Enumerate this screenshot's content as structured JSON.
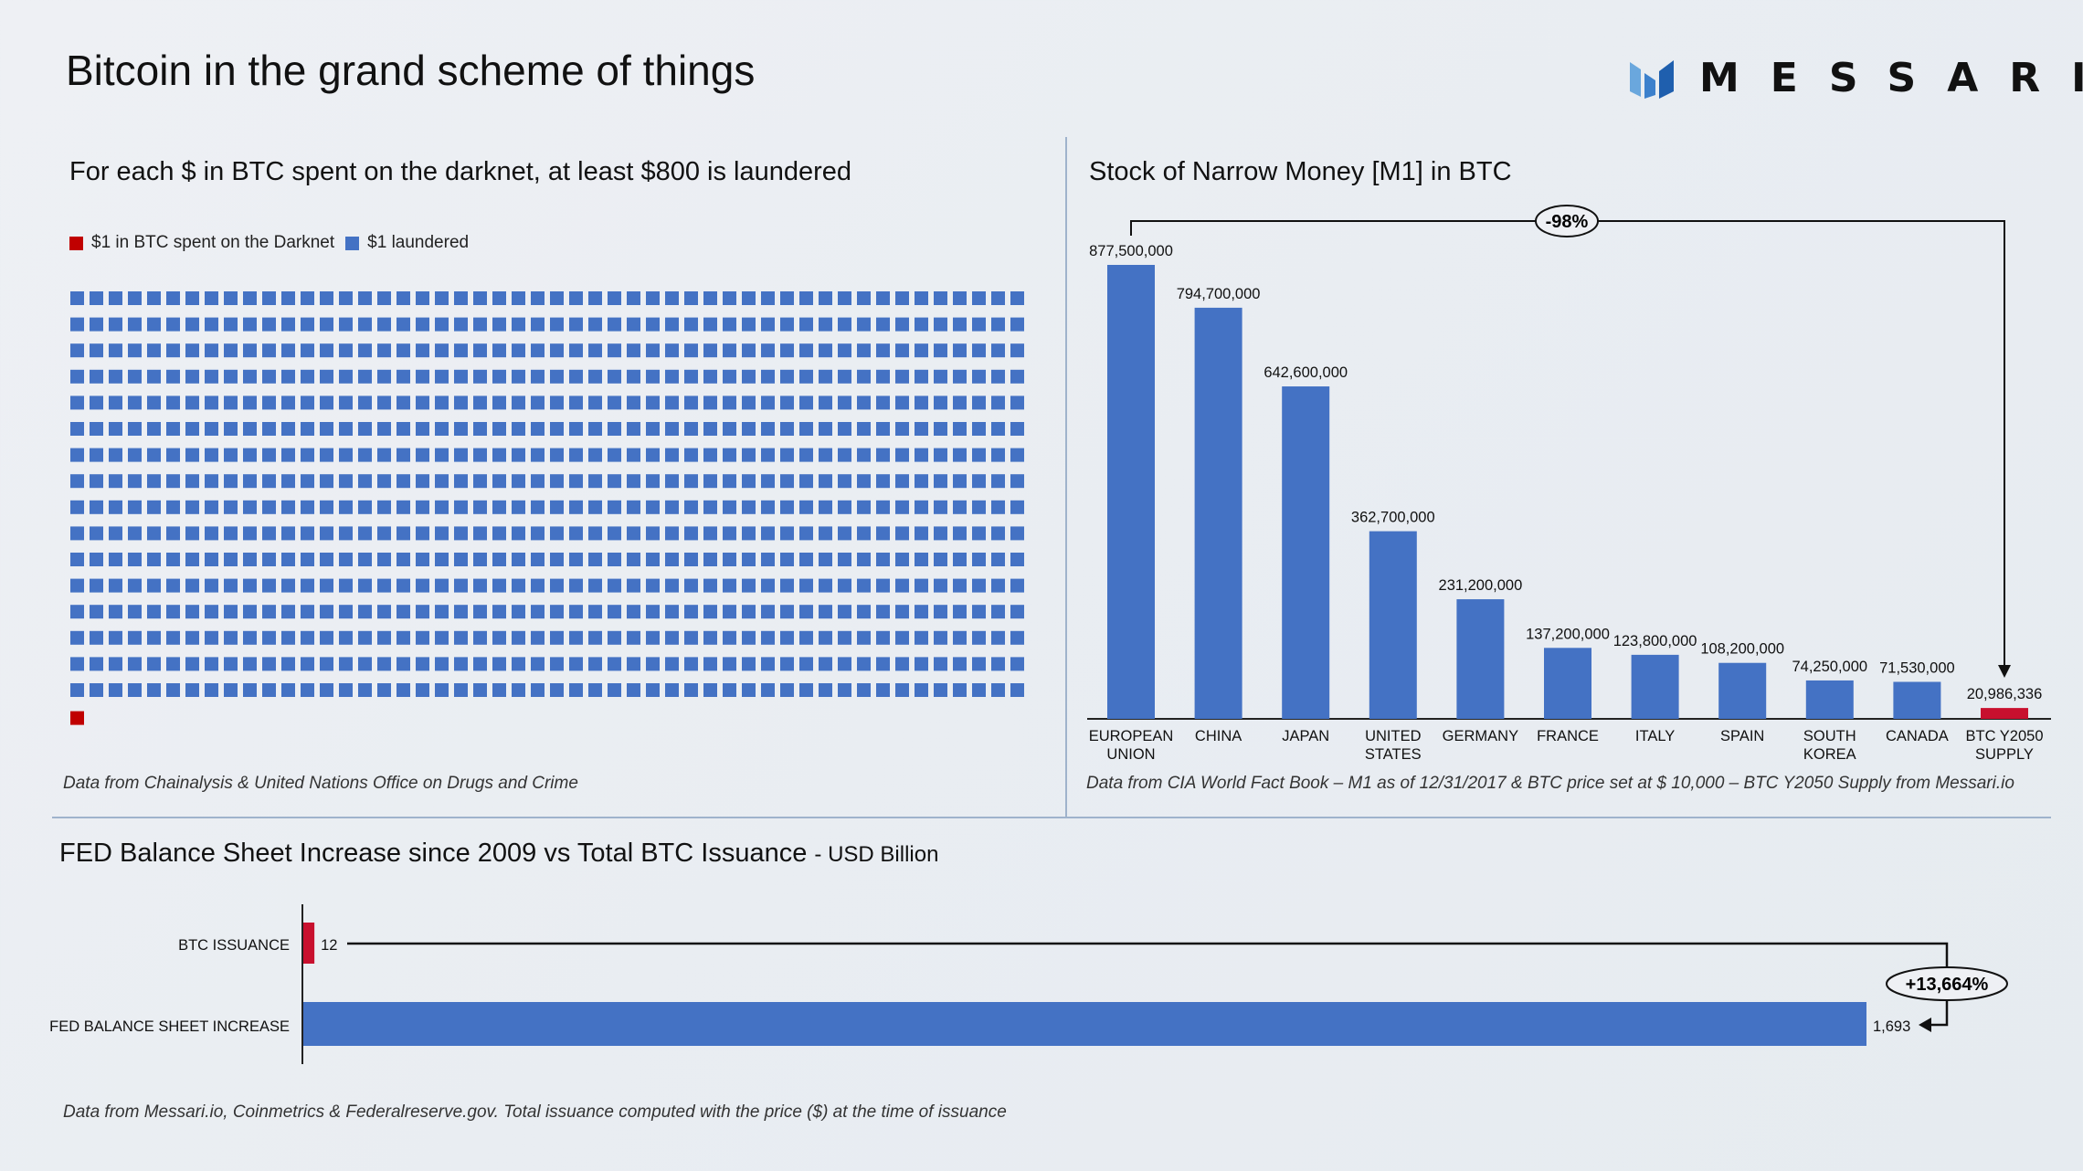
{
  "title": "Bitcoin in the grand scheme of things",
  "logo": {
    "text": "MESSARI",
    "colors": [
      "#5b9bd5",
      "#2f6fbf",
      "#1f5fae"
    ]
  },
  "colors": {
    "blue": "#4472c4",
    "red": "#c8102e",
    "background": "#eceff3"
  },
  "chart_data": [
    {
      "type": "waffle",
      "title": "For each $ in BTC spent on the darknet, at least $800 is laundered",
      "legend": [
        {
          "label": "$1 in BTC spent on the Darknet",
          "color": "#c00000"
        },
        {
          "label": "$1 laundered",
          "color": "#4472c4"
        }
      ],
      "values": {
        "$1 in BTC spent on the Darknet": 1,
        "$1 laundered": 800
      },
      "legend_placement": "top-left",
      "note": "Data from Chainalysis & United Nations Office on Drugs and Crime"
    },
    {
      "type": "bar",
      "title": "Stock of Narrow Money [M1] in BTC",
      "categories": [
        "EUROPEAN UNION",
        "CHINA",
        "JAPAN",
        "UNITED STATES",
        "GERMANY",
        "FRANCE",
        "ITALY",
        "SPAIN",
        "SOUTH KOREA",
        "CANADA",
        "BTC Y2050 SUPPLY"
      ],
      "category_lines": [
        [
          "EUROPEAN",
          "UNION"
        ],
        [
          "CHINA"
        ],
        [
          "JAPAN"
        ],
        [
          "UNITED",
          "STATES"
        ],
        [
          "GERMANY"
        ],
        [
          "FRANCE"
        ],
        [
          "ITALY"
        ],
        [
          "SPAIN"
        ],
        [
          "SOUTH",
          "KOREA"
        ],
        [
          "CANADA"
        ],
        [
          "BTC Y2050",
          "SUPPLY"
        ]
      ],
      "values": [
        877500000,
        794700000,
        642600000,
        362700000,
        231200000,
        137200000,
        123800000,
        108200000,
        74250000,
        71530000,
        20986336
      ],
      "value_labels": [
        "877,500,000",
        "794,700,000",
        "642,600,000",
        "362,700,000",
        "231,200,000",
        "137,200,000",
        "123,800,000",
        "108,200,000",
        "74,250,000",
        "71,530,000",
        "20,986,336"
      ],
      "bar_colors": [
        "#4472c4",
        "#4472c4",
        "#4472c4",
        "#4472c4",
        "#4472c4",
        "#4472c4",
        "#4472c4",
        "#4472c4",
        "#4472c4",
        "#4472c4",
        "#c8102e"
      ],
      "annotation": "-98%",
      "grid": false,
      "note": "Data from CIA World Fact Book – M1 as of 12/31/2017 & BTC price set at $ 10,000 – BTC Y2050 Supply from Messari.io"
    },
    {
      "type": "bar-horizontal",
      "title": "FED Balance Sheet Increase since 2009 vs Total BTC Issuance",
      "unit": "- USD Billion",
      "categories": [
        "BTC ISSUANCE",
        "FED BALANCE SHEET INCREASE"
      ],
      "values": [
        12,
        1693
      ],
      "value_labels": [
        "12",
        "1,693"
      ],
      "bar_colors": [
        "#c8102e",
        "#4472c4"
      ],
      "annotation": "+13,664%",
      "grid": false,
      "note": "Data from Messari.io, Coinmetrics & Federalreserve.gov. Total issuance computed with the price ($) at the time of issuance"
    }
  ]
}
